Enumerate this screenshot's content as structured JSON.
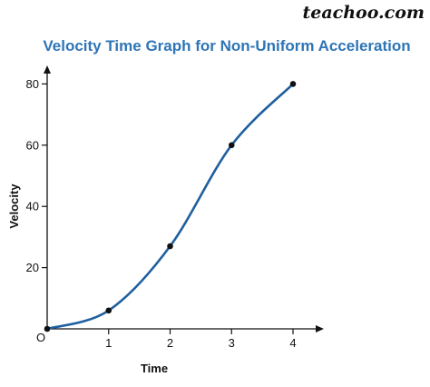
{
  "watermark": "teachoo.com",
  "colors": {
    "title": "#2e75b6",
    "curve": "#1f5f9f",
    "axis": "#111111",
    "point": "#111111"
  },
  "chart_data": {
    "type": "line",
    "title": "Velocity Time Graph for Non-Uniform Acceleration",
    "xlabel": "Time",
    "ylabel": "Velocity",
    "origin_label": "O",
    "xlim": [
      0,
      4.5
    ],
    "ylim": [
      0,
      88
    ],
    "x_ticks": [
      "1",
      "2",
      "3",
      "4"
    ],
    "y_ticks": [
      "20",
      "40",
      "60",
      "80"
    ],
    "grid": false,
    "legend": "none",
    "series": [
      {
        "x": [
          0,
          1,
          2,
          3,
          4
        ],
        "y": [
          0,
          6,
          27,
          60,
          80
        ]
      }
    ]
  }
}
